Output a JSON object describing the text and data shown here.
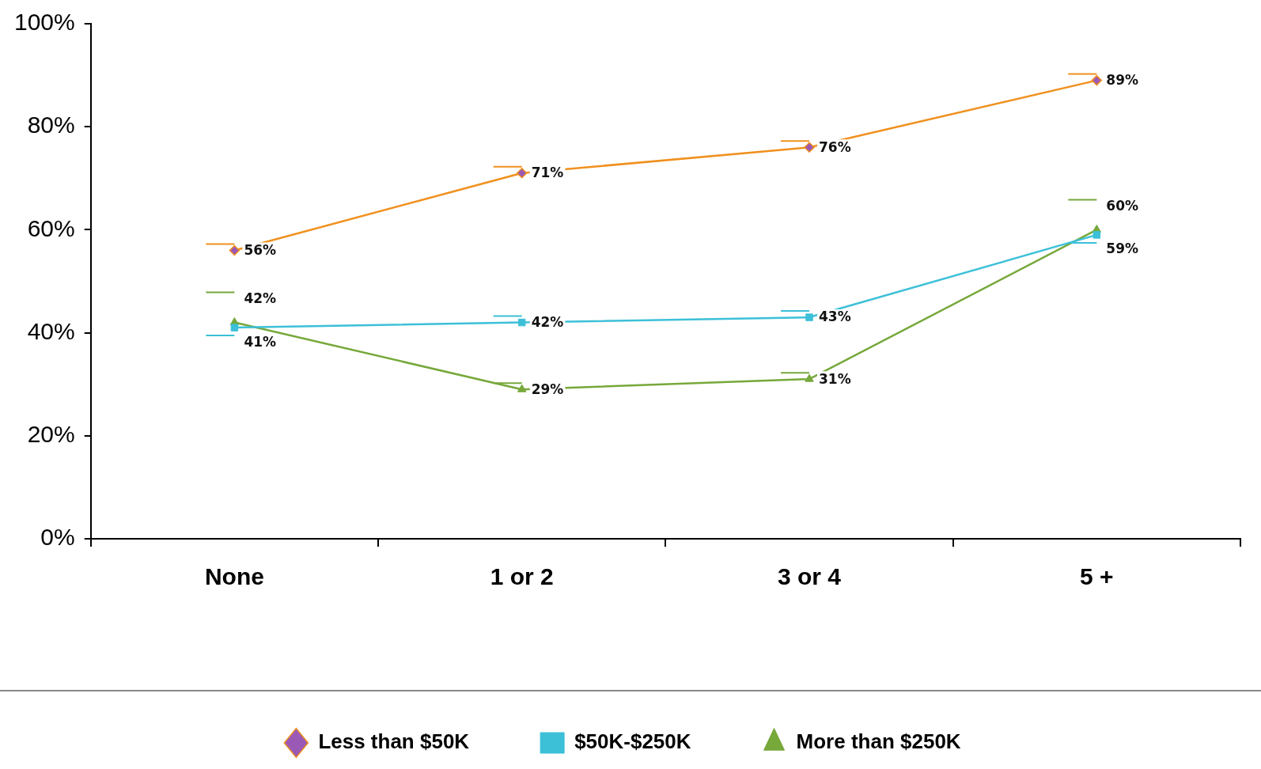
{
  "chart_data": {
    "type": "line",
    "categories": [
      "None",
      "1 or 2",
      "3 or 4",
      "5 +"
    ],
    "series": [
      {
        "name": "Less than $50K",
        "color": "#f0901e",
        "marker": "diamond",
        "values": [
          56,
          71,
          76,
          89
        ],
        "value_labels": [
          "56%",
          "71%",
          "76%",
          "89%"
        ]
      },
      {
        "name": "$50K-$250K",
        "color": "#3cc0d8",
        "marker": "square",
        "values": [
          41,
          42,
          43,
          59
        ],
        "value_labels": [
          "41%",
          "42%",
          "43%",
          "59%"
        ]
      },
      {
        "name": "More than $250K",
        "color": "#76a83a",
        "marker": "triangle",
        "values": [
          42,
          29,
          31,
          60
        ],
        "value_labels": [
          "42%",
          "29%",
          "31%",
          "60%"
        ]
      }
    ],
    "ylim": [
      0,
      100
    ],
    "yticks": [
      {
        "value": 0,
        "label": "0%"
      },
      {
        "value": 20,
        "label": "20%"
      },
      {
        "value": 40,
        "label": "40%"
      },
      {
        "value": 60,
        "label": "60%"
      },
      {
        "value": 80,
        "label": "80%"
      },
      {
        "value": 100,
        "label": "100%"
      }
    ],
    "grid": false,
    "legend": "bottom",
    "line_style": "solid"
  }
}
